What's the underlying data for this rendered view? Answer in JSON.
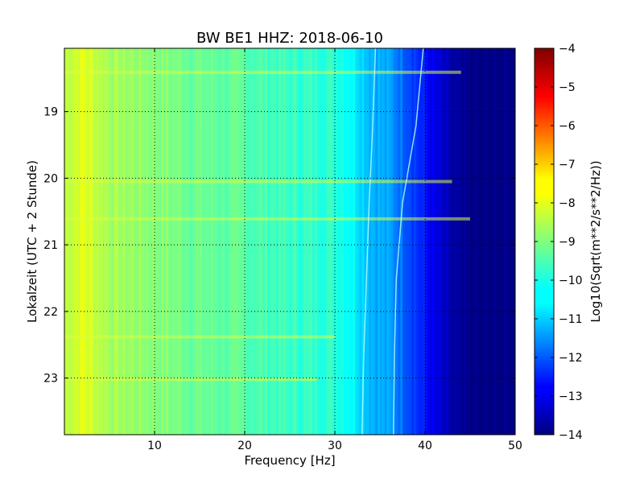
{
  "chart_data": {
    "type": "heatmap",
    "title": "BW BE1 HHZ: 2018-06-10",
    "xlabel": "Frequency [Hz]",
    "ylabel": "Lokalzeit (UTC + 2 Stunde)",
    "xlim": [
      0,
      50
    ],
    "ylim": [
      18.05,
      23.85
    ],
    "y_inverted": true,
    "xticks": [
      10,
      20,
      30,
      40,
      50
    ],
    "yticks": [
      19,
      20,
      21,
      22,
      23
    ],
    "grid": true,
    "colormap": "jet",
    "colorbar": {
      "label": "Log10(Sqrt(m**2/s**2/Hz))",
      "range": [
        -14,
        -4
      ],
      "ticks": [
        -4,
        -5,
        -6,
        -7,
        -8,
        -9,
        -10,
        -11,
        -12,
        -13,
        -14
      ]
    },
    "profile": {
      "frequency_hz": [
        0,
        2,
        5,
        10,
        15,
        20,
        25,
        30,
        32,
        34,
        36,
        38,
        40,
        42,
        44,
        46,
        50
      ],
      "log_psd": [
        -8.4,
        -8.0,
        -8.6,
        -8.9,
        -9.2,
        -9.4,
        -9.7,
        -9.8,
        -10.2,
        -10.9,
        -11.2,
        -11.8,
        -12.6,
        -13.4,
        -13.9,
        -14,
        -14
      ]
    },
    "spectral_lines": [
      {
        "hour_start": 18.05,
        "hour_end": 23.85,
        "frequency_hz": [
          34.5,
          34.2,
          33.8,
          33.5,
          33.2,
          33.0
        ]
      },
      {
        "hour_start": 18.05,
        "hour_end": 23.85,
        "frequency_hz": [
          39.8,
          39.0,
          37.5,
          36.8,
          36.6,
          36.5
        ]
      }
    ],
    "transient_bands": [
      {
        "hour": 18.41,
        "max_frequency_hz": 44
      },
      {
        "hour": 20.05,
        "max_frequency_hz": 43
      },
      {
        "hour": 20.61,
        "max_frequency_hz": 45
      },
      {
        "hour": 22.38,
        "max_frequency_hz": 30
      },
      {
        "hour": 23.02,
        "max_frequency_hz": 28
      }
    ]
  }
}
